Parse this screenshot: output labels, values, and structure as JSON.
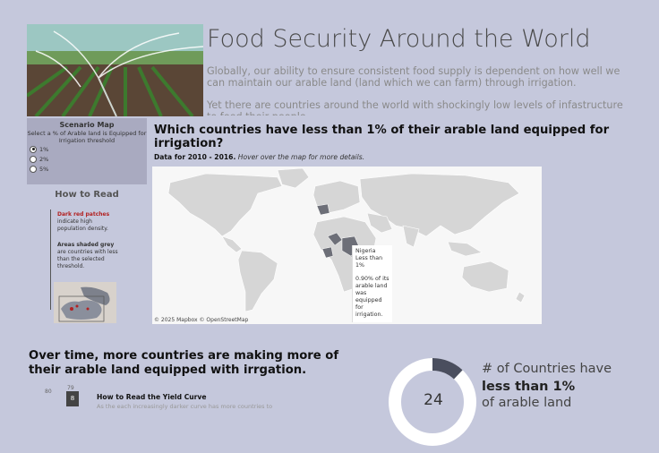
{
  "header": {
    "title": "Food Security Around the World",
    "intro_p1": "Globally, our ability to ensure consistent food supply is dependent on how well we can maintain our arable land (land which we can farm) through irrigation.",
    "intro_p2": "Yet there are countries around the world with shockingly low levels of infastructure to feed their people."
  },
  "scenario": {
    "title": "Scenario Map",
    "description": "Select a  % of Arable land is Equipped for Irrigation threshold",
    "options": [
      "1%",
      "2%",
      "5%"
    ],
    "selected": "1%"
  },
  "how_to_read": {
    "title": "How to Read",
    "red_label": "Dark red patches",
    "red_text": "indicate high population density.",
    "grey_label": "Areas shaded grey",
    "grey_text": "are countries with less than the selected threshold."
  },
  "map_section": {
    "title": "Which countries have less than 1% of their arable land equipped for irrigation?",
    "subtitle_bold": "Data for 2010 - 2016.",
    "subtitle_hint": "Hover over the map for more details.",
    "credit": "© 2025 Mapbox  © OpenStreetMap",
    "tooltip": {
      "country": "Nigeria",
      "category": "Less than 1%",
      "detail": "0.90% of its arable land was equipped for irrigation."
    }
  },
  "trend": {
    "title": "Over time, more countries are making more of their arable land equipped with irrgation.",
    "axis_label_80": "80",
    "axis_label_79": "79",
    "yield_title": "How to Read the  Yield Curve",
    "yield_desc": "As the each increasingly darker curve has more countries to"
  },
  "kpi": {
    "count": "24",
    "line1": "# of Countries have",
    "line2": "less than 1%",
    "line3": "of arable land",
    "donut_share": 0.12,
    "colors": {
      "ring": "#ffffff",
      "highlight": "#4a4e5e"
    }
  },
  "colors": {
    "background": "#c5c8dc",
    "scenario_panel": "#a9aac0",
    "map_land": "#d6d6d6",
    "map_highlight": "#6d6f78",
    "map_water": "#f7f7f7"
  }
}
